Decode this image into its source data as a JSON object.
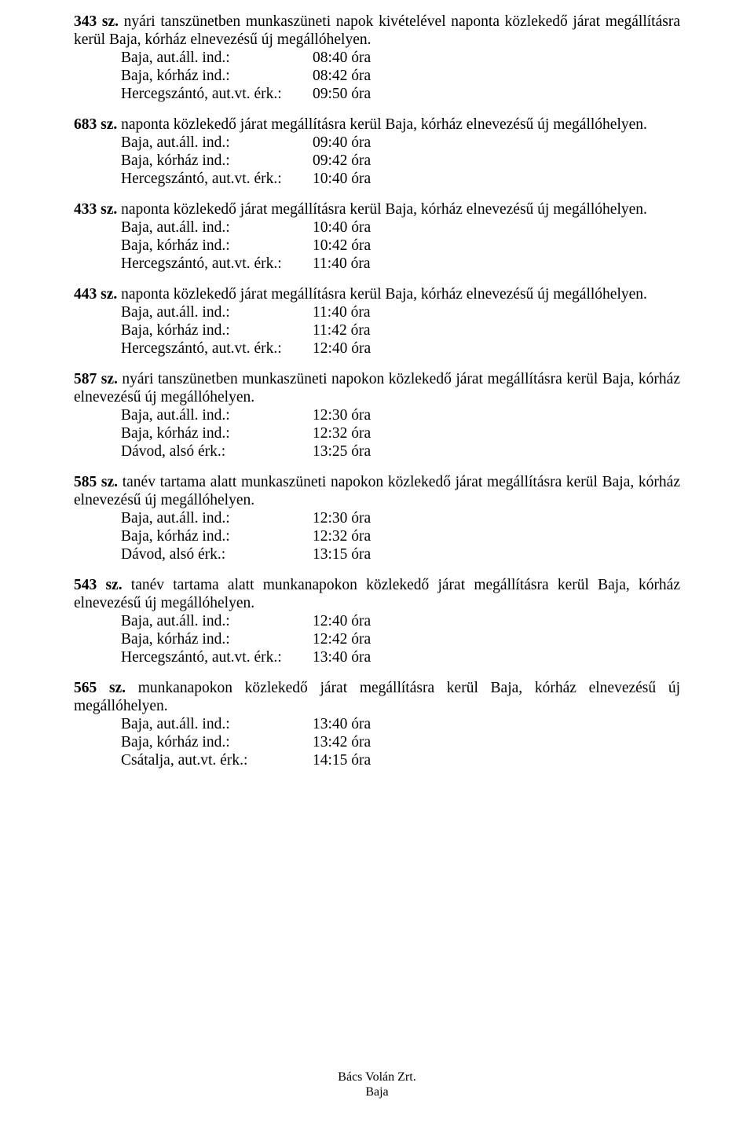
{
  "entries": [
    {
      "first": "343 sz.",
      "rest": " nyári tanszünetben munkaszüneti napok kivételével naponta közlekedő járat megállításra kerül Baja, kórház elnevezésű új megállóhelyen.",
      "rows": [
        {
          "label": "Baja, aut.áll. ind.:",
          "value": "08:40 óra"
        },
        {
          "label": "Baja, kórház ind.:",
          "value": "08:42 óra"
        },
        {
          "label": "Hercegszántó, aut.vt. érk.:",
          "value": "09:50 óra"
        }
      ]
    },
    {
      "first": "683 sz.",
      "rest": " naponta közlekedő járat megállításra kerül Baja, kórház elnevezésű új megállóhelyen.",
      "rows": [
        {
          "label": "Baja, aut.áll. ind.:",
          "value": "09:40 óra"
        },
        {
          "label": "Baja, kórház ind.:",
          "value": "09:42 óra"
        },
        {
          "label": "Hercegszántó, aut.vt. érk.:",
          "value": "10:40 óra"
        }
      ]
    },
    {
      "first": "433 sz.",
      "rest": " naponta közlekedő járat megállításra kerül Baja, kórház elnevezésű új megállóhelyen.",
      "rows": [
        {
          "label": "Baja, aut.áll. ind.:",
          "value": "10:40 óra"
        },
        {
          "label": "Baja, kórház ind.:",
          "value": "10:42 óra"
        },
        {
          "label": "Hercegszántó, aut.vt. érk.:",
          "value": "11:40 óra"
        }
      ]
    },
    {
      "first": "443 sz.",
      "rest": " naponta közlekedő járat megállításra kerül Baja, kórház elnevezésű új megállóhelyen.",
      "rows": [
        {
          "label": "Baja, aut.áll. ind.:",
          "value": "11:40 óra"
        },
        {
          "label": "Baja, kórház ind.:",
          "value": "11:42 óra"
        },
        {
          "label": "Hercegszántó, aut.vt. érk.:",
          "value": "12:40 óra"
        }
      ]
    },
    {
      "first": "587 sz.",
      "rest": " nyári tanszünetben munkaszüneti napokon közlekedő járat megállításra kerül Baja, kórház elnevezésű új megállóhelyen.",
      "rows": [
        {
          "label": "Baja, aut.áll. ind.:",
          "value": "12:30 óra"
        },
        {
          "label": "Baja, kórház ind.:",
          "value": "12:32 óra"
        },
        {
          "label": "Dávod, alsó érk.:",
          "value": "13:25 óra"
        }
      ]
    },
    {
      "first": "585 sz.",
      "rest": " tanév tartama alatt munkaszüneti napokon közlekedő járat megállításra kerül Baja, kórház elnevezésű új megállóhelyen.",
      "rows": [
        {
          "label": "Baja, aut.áll. ind.:",
          "value": "12:30 óra"
        },
        {
          "label": "Baja, kórház ind.:",
          "value": "12:32 óra"
        },
        {
          "label": "Dávod, alsó érk.:",
          "value": "13:15 óra"
        }
      ]
    },
    {
      "first": "543 sz.",
      "rest": " tanév tartama alatt munkanapokon közlekedő járat megállításra kerül Baja, kórház elnevezésű új megállóhelyen.",
      "rows": [
        {
          "label": "Baja, aut.áll. ind.:",
          "value": "12:40 óra"
        },
        {
          "label": "Baja, kórház ind.:",
          "value": "12:42 óra"
        },
        {
          "label": "Hercegszántó, aut.vt. érk.:",
          "value": "13:40 óra"
        }
      ]
    },
    {
      "first": "565 sz.",
      "rest": " munkanapokon közlekedő járat megállításra kerül Baja, kórház elnevezésű új megállóhelyen.",
      "rows": [
        {
          "label": "Baja, aut.áll. ind.:",
          "value": "13:40 óra"
        },
        {
          "label": "Baja, kórház ind.:",
          "value": "13:42 óra"
        },
        {
          "label": "Csátalja, aut.vt. érk.:",
          "value": "14:15 óra"
        }
      ]
    }
  ],
  "footer": {
    "line1": "Bács Volán Zrt.",
    "line2": "Baja"
  }
}
